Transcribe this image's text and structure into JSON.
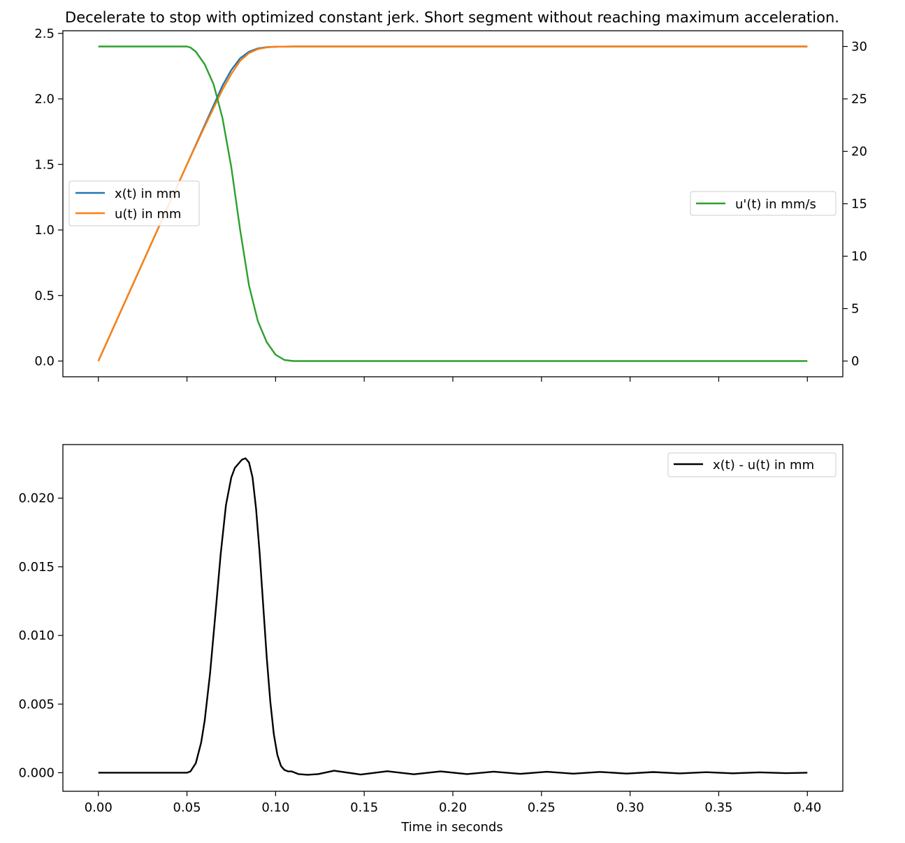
{
  "title": "Decelerate to stop with optimized constant jerk. Short segment without reaching maximum acceleration.",
  "colors": {
    "x": "#1f77b4",
    "u": "#ff7f0e",
    "du": "#2ca02c",
    "diff": "#000000",
    "axes": "#000000",
    "legend_border": "#cccccc"
  },
  "chart_data": [
    {
      "type": "line",
      "title": "Decelerate to stop with optimized constant jerk. Short segment without reaching maximum acceleration.",
      "xlabel": "",
      "ylabel": "",
      "xlim": [
        -0.02,
        0.42
      ],
      "ylim": [
        -0.12,
        2.52
      ],
      "y2lim": [
        -1.5,
        31.5
      ],
      "grid": false,
      "x_ticks": [
        "0.00",
        "0.05",
        "0.10",
        "0.15",
        "0.20",
        "0.25",
        "0.30",
        "0.35",
        "0.40"
      ],
      "x_tick_labels_visible": false,
      "y_ticks": [
        "0.0",
        "0.5",
        "1.0",
        "1.5",
        "2.0",
        "2.5"
      ],
      "y2_ticks": [
        "0",
        "5",
        "10",
        "15",
        "20",
        "25",
        "30"
      ],
      "legend_left": {
        "placement": "center-left",
        "entries": [
          "x(t)  in mm",
          "u(t)  in mm"
        ]
      },
      "legend_right": {
        "placement": "center-right",
        "entries": [
          "u'(t)  in mm/s"
        ]
      },
      "series": [
        {
          "name": "x(t)  in mm",
          "axis": "left",
          "x": [
            0,
            0.01,
            0.02,
            0.03,
            0.04,
            0.05,
            0.06,
            0.065,
            0.07,
            0.075,
            0.08,
            0.085,
            0.09,
            0.095,
            0.1,
            0.105,
            0.11,
            0.12,
            0.2,
            0.3,
            0.4
          ],
          "values": [
            0,
            0.3,
            0.6,
            0.9,
            1.2,
            1.5,
            1.8,
            1.95,
            2.1,
            2.22,
            2.31,
            2.36,
            2.385,
            2.395,
            2.398,
            2.399,
            2.4,
            2.4,
            2.4,
            2.4,
            2.4
          ]
        },
        {
          "name": "u(t)  in mm",
          "axis": "left",
          "x": [
            0,
            0.01,
            0.02,
            0.03,
            0.04,
            0.05,
            0.06,
            0.065,
            0.07,
            0.075,
            0.08,
            0.085,
            0.09,
            0.095,
            0.1,
            0.105,
            0.11,
            0.12,
            0.2,
            0.3,
            0.4
          ],
          "values": [
            0,
            0.3,
            0.6,
            0.9,
            1.2,
            1.5,
            1.79,
            1.93,
            2.07,
            2.19,
            2.29,
            2.35,
            2.38,
            2.393,
            2.398,
            2.399,
            2.4,
            2.4,
            2.4,
            2.4,
            2.4
          ]
        },
        {
          "name": "u'(t)  in mm/s",
          "axis": "right",
          "x": [
            0,
            0.05,
            0.052,
            0.055,
            0.06,
            0.065,
            0.07,
            0.075,
            0.08,
            0.085,
            0.09,
            0.095,
            0.1,
            0.105,
            0.11,
            0.2,
            0.3,
            0.4
          ],
          "values": [
            30,
            30,
            29.9,
            29.5,
            28.3,
            26.4,
            23.2,
            18.5,
            12.5,
            7.2,
            3.8,
            1.8,
            0.6,
            0.1,
            0,
            0,
            0,
            0
          ]
        }
      ]
    },
    {
      "type": "line",
      "title": "",
      "xlabel": "Time in seconds",
      "ylabel": "",
      "xlim": [
        -0.02,
        0.42
      ],
      "ylim": [
        -0.00135,
        0.0239
      ],
      "grid": false,
      "x_ticks": [
        "0.00",
        "0.05",
        "0.10",
        "0.15",
        "0.20",
        "0.25",
        "0.30",
        "0.35",
        "0.40"
      ],
      "y_ticks": [
        "0.000",
        "0.005",
        "0.010",
        "0.015",
        "0.020"
      ],
      "legend": {
        "placement": "top-right",
        "entries": [
          "x(t) - u(t)  in mm"
        ]
      },
      "series": [
        {
          "name": "x(t) - u(t)  in mm",
          "x": [
            0,
            0.05,
            0.052,
            0.055,
            0.058,
            0.06,
            0.063,
            0.066,
            0.069,
            0.072,
            0.075,
            0.077,
            0.079,
            0.081,
            0.083,
            0.085,
            0.087,
            0.089,
            0.091,
            0.093,
            0.095,
            0.097,
            0.099,
            0.101,
            0.103,
            0.105,
            0.107,
            0.109,
            0.113,
            0.118,
            0.124,
            0.133,
            0.148,
            0.163,
            0.178,
            0.193,
            0.208,
            0.223,
            0.238,
            0.253,
            0.268,
            0.283,
            0.298,
            0.313,
            0.328,
            0.343,
            0.358,
            0.373,
            0.388,
            0.4
          ],
          "values": [
            0,
            0,
            0.0001,
            0.0007,
            0.0022,
            0.0038,
            0.0072,
            0.0115,
            0.0159,
            0.0195,
            0.0215,
            0.0222,
            0.0225,
            0.0228,
            0.0229,
            0.0226,
            0.0215,
            0.0192,
            0.016,
            0.0122,
            0.0084,
            0.0052,
            0.0028,
            0.0013,
            0.0005,
            0.0002,
            0.0001,
            0.0001,
            -0.0001,
            -0.00015,
            -0.0001,
            0.00015,
            -0.00013,
            0.00011,
            -0.00011,
            0.0001,
            -0.0001,
            8e-05,
            -8e-05,
            7e-05,
            -7e-05,
            6e-05,
            -6e-05,
            5e-05,
            -5e-05,
            4e-05,
            -4e-05,
            3e-05,
            -3e-05,
            0
          ]
        }
      ]
    }
  ]
}
